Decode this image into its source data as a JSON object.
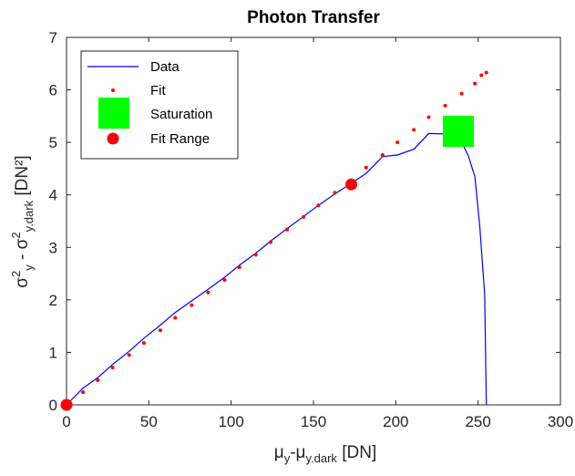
{
  "chart_data": {
    "type": "line",
    "title": "Photon Transfer",
    "xlim": [
      0,
      300
    ],
    "ylim": [
      0,
      7
    ],
    "xticks": [
      0,
      50,
      100,
      150,
      200,
      250,
      300
    ],
    "yticks": [
      0,
      1,
      2,
      3,
      4,
      5,
      6,
      7
    ],
    "xlabel": {
      "mu": "μ",
      "sub1": "y",
      "dash": "-",
      "mu2": "μ",
      "sub2": "y.dark",
      "unit": " [DN]"
    },
    "ylabel": {
      "sigma": "σ",
      "sup": "2",
      "sub1": "y",
      "minus": " - ",
      "sigma2": "σ",
      "sup2": "2",
      "sub2": "y.dark",
      "unit": " [DN²]"
    },
    "legend": {
      "placement": "top-left",
      "entries": [
        {
          "label": "Data",
          "marker": "line",
          "color": "#0000ff"
        },
        {
          "label": "Fit",
          "marker": "dot",
          "color": "#ff0000"
        },
        {
          "label": "Saturation",
          "marker": "square",
          "color": "#00ff00"
        },
        {
          "label": "Fit Range",
          "marker": "circle",
          "color": "#ff0000"
        }
      ]
    },
    "series": [
      {
        "name": "Data",
        "color": "#0000ff",
        "x": [
          0,
          10,
          19,
          28,
          38,
          47,
          57,
          66,
          76,
          86,
          96,
          105,
          115,
          124,
          134,
          144,
          153,
          163,
          173,
          182,
          192,
          201,
          211,
          220,
          230,
          236,
          240,
          244,
          248,
          251,
          254,
          255
        ],
        "y": [
          0,
          0.32,
          0.52,
          0.77,
          1.02,
          1.27,
          1.52,
          1.76,
          1.98,
          2.2,
          2.43,
          2.66,
          2.89,
          3.12,
          3.36,
          3.59,
          3.8,
          4.02,
          4.22,
          4.41,
          4.73,
          4.76,
          4.87,
          5.17,
          5.16,
          5.15,
          5.0,
          4.75,
          4.35,
          3.4,
          2.1,
          0
        ]
      },
      {
        "name": "Fit",
        "color": "#ff0000",
        "x": [
          0,
          10,
          19,
          28,
          38,
          47,
          57,
          66,
          76,
          86,
          96,
          105,
          115,
          124,
          134,
          144,
          153,
          163,
          173,
          182,
          192,
          201,
          211,
          220,
          230,
          240,
          248,
          252,
          255
        ],
        "y": [
          0,
          0.24,
          0.47,
          0.71,
          0.95,
          1.18,
          1.42,
          1.66,
          1.9,
          2.14,
          2.38,
          2.62,
          2.86,
          3.1,
          3.34,
          3.58,
          3.8,
          4.04,
          4.28,
          4.52,
          4.76,
          5.0,
          5.24,
          5.48,
          5.7,
          5.93,
          6.12,
          6.28,
          6.33
        ]
      }
    ],
    "saturation": {
      "name": "Saturation",
      "x": 238,
      "y": 5.21,
      "color": "#00ff00"
    },
    "fit_range": {
      "name": "Fit Range",
      "points": [
        {
          "x": 0,
          "y": 0
        },
        {
          "x": 173,
          "y": 4.2
        }
      ],
      "color": "#ff0000"
    }
  }
}
